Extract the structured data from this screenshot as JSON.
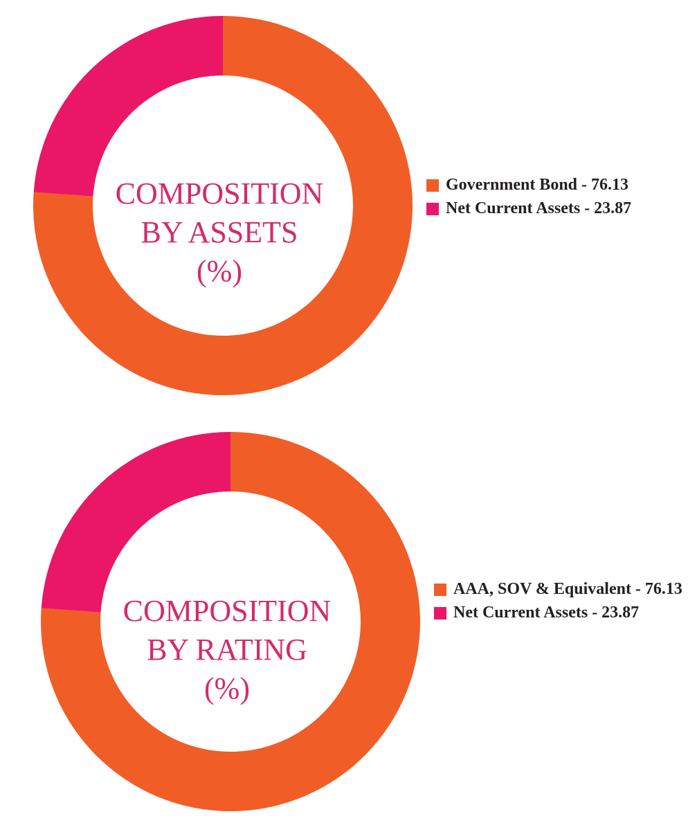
{
  "colors": {
    "orange": "#f15d27",
    "pink": "#ea1666",
    "title": "#d42a6b",
    "legend_text": "#231f20"
  },
  "chart_data": [
    {
      "type": "pie",
      "style": "donut",
      "title": "COMPOSITION\nBY ASSETS\n(%)",
      "categories": [
        "Government Bond - 76.13",
        "Net Current Assets - 23.87"
      ],
      "values": [
        76.13,
        23.87
      ],
      "colors": [
        "#f15d27",
        "#ea1666"
      ],
      "legend_position": "right"
    },
    {
      "type": "pie",
      "style": "donut",
      "title": "COMPOSITION\nBY RATING\n(%)",
      "categories": [
        "AAA, SOV & Equivalent - 76.13",
        "Net Current Assets - 23.87"
      ],
      "values": [
        76.13,
        23.87
      ],
      "colors": [
        "#f15d27",
        "#ea1666"
      ],
      "legend_position": "right"
    }
  ]
}
